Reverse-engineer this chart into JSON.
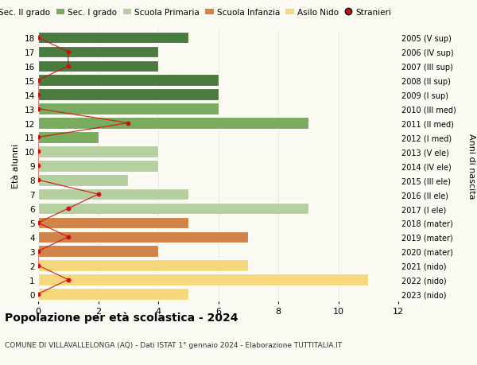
{
  "ages": [
    18,
    17,
    16,
    15,
    14,
    13,
    12,
    11,
    10,
    9,
    8,
    7,
    6,
    5,
    4,
    3,
    2,
    1,
    0
  ],
  "values": [
    5,
    4,
    4,
    6,
    6,
    6,
    9,
    2,
    4,
    4,
    3,
    5,
    9,
    5,
    7,
    4,
    7,
    11,
    5
  ],
  "stranieri": [
    0,
    1,
    1,
    0,
    0,
    0,
    3,
    0,
    0,
    0,
    0,
    2,
    1,
    0,
    1,
    0,
    0,
    1,
    0
  ],
  "bar_colors": [
    "#4a7c3f",
    "#4a7c3f",
    "#4a7c3f",
    "#4a7c3f",
    "#4a7c3f",
    "#7aab5e",
    "#7aab5e",
    "#7aab5e",
    "#b5cfa0",
    "#b5cfa0",
    "#b5cfa0",
    "#b5cfa0",
    "#b5cfa0",
    "#d0844a",
    "#d0844a",
    "#d0844a",
    "#f5d87c",
    "#f5d87c",
    "#f5d87c"
  ],
  "right_labels": [
    "2005 (V sup)",
    "2006 (IV sup)",
    "2007 (III sup)",
    "2008 (II sup)",
    "2009 (I sup)",
    "2010 (III med)",
    "2011 (II med)",
    "2012 (I med)",
    "2013 (V ele)",
    "2014 (IV ele)",
    "2015 (III ele)",
    "2016 (II ele)",
    "2017 (I ele)",
    "2018 (mater)",
    "2019 (mater)",
    "2020 (mater)",
    "2021 (nido)",
    "2022 (nido)",
    "2023 (nido)"
  ],
  "legend_labels": [
    "Sec. II grado",
    "Sec. I grado",
    "Scuola Primaria",
    "Scuola Infanzia",
    "Asilo Nido",
    "Stranieri"
  ],
  "legend_colors": [
    "#4a7c3f",
    "#7aab5e",
    "#b5cfa0",
    "#d0844a",
    "#f5d87c",
    "#cc1111"
  ],
  "ylabel": "Età alunni",
  "right_ylabel": "Anni di nascita",
  "title": "Popolazione per età scolastica - 2024",
  "subtitle": "COMUNE DI VILLAVALLELONGA (AQ) - Dati ISTAT 1° gennaio 2024 - Elaborazione TUTTITALIA.IT",
  "xlim": [
    0,
    12
  ],
  "stranieri_color": "#cc1111",
  "background_color": "#fafaf2",
  "bar_edge_color": "white",
  "grid_color": "#cccccc"
}
